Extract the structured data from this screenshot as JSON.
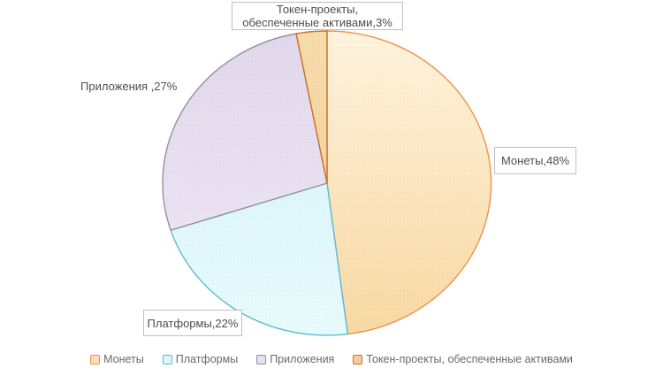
{
  "chart_data": {
    "type": "pie",
    "title": "",
    "labels": [
      "Монеты",
      "Платформы",
      "Приложения",
      "Токен-проекты, обеспеченные активами"
    ],
    "values": [
      48,
      22,
      27,
      3
    ],
    "unit": "%",
    "start_angle_deg": 0,
    "direction": "clockwise",
    "legend_position": "bottom",
    "slice_ids": [
      "coins",
      "platforms",
      "applications",
      "token-projects"
    ],
    "colors": [
      {
        "fill_top": "#FEF4DF",
        "fill_bottom": "#F8D9A4",
        "stroke": "#ED9248",
        "legend_fill": "#FBDFB4"
      },
      {
        "fill_top": "#D5F1F7",
        "fill_bottom": "#E9FBFD",
        "stroke": "#5ABCD2",
        "legend_fill": "#DCF5F9"
      },
      {
        "fill_top": "#E2D8EC",
        "fill_bottom": "#F0EAF6",
        "stroke": "#94909F",
        "legend_fill": "#E7DEF0"
      },
      {
        "fill_top": "#F7DCAC",
        "fill_bottom": "#F3CF97",
        "stroke": "#CC6F2C",
        "legend_fill": "#F5CE9B"
      }
    ]
  },
  "callouts": {
    "token": {
      "lines": [
        "Токен-проекты,",
        "обеспеченные активами,3%"
      ]
    },
    "applications": {
      "text": "Приложения ,27%"
    },
    "coins": {
      "text": "Монеты,48%"
    },
    "platforms": {
      "text": "Платформы,22%"
    }
  },
  "legend": {
    "items": [
      {
        "label": "Монеты"
      },
      {
        "label": "Платформы"
      },
      {
        "label": "Приложения"
      },
      {
        "label": "Токен-проекты, обеспеченные активами"
      }
    ]
  }
}
